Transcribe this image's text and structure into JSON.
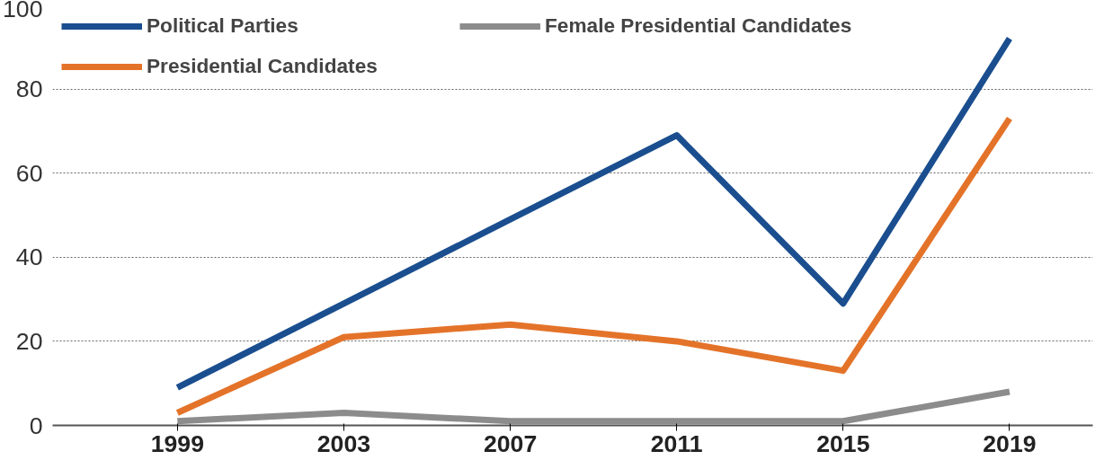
{
  "chart_data": {
    "type": "line",
    "x": [
      1999,
      2003,
      2007,
      2011,
      2015,
      2019
    ],
    "series": [
      {
        "name": "Political Parties",
        "color": "#1a4e8f",
        "values": [
          9,
          29,
          49,
          69,
          29,
          92
        ]
      },
      {
        "name": "Presidential Candidates",
        "color": "#e4732a",
        "values": [
          3,
          21,
          24,
          20,
          13,
          73
        ]
      },
      {
        "name": "Female Presidential Candidates",
        "color": "#8c8c8c",
        "values": [
          1,
          3,
          1,
          1,
          1,
          8
        ]
      }
    ],
    "xlim": [
      1996,
      2021
    ],
    "xticks": [
      1999,
      2003,
      2007,
      2011,
      2015,
      2019
    ],
    "ylim": [
      0,
      100
    ],
    "yticks": [
      0,
      20,
      40,
      60,
      80,
      100
    ],
    "grid": "y",
    "legend": "top left",
    "marker": "none",
    "line_style": "solid"
  }
}
